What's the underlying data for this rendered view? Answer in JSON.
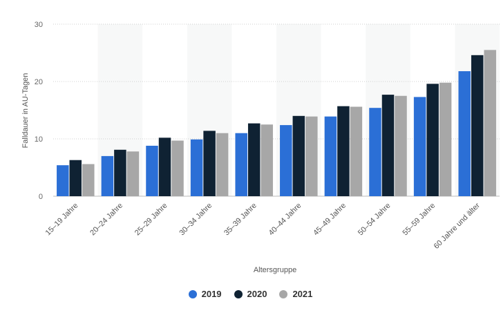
{
  "chart_data": {
    "type": "bar",
    "categories": [
      "15–19 Jahre",
      "20–24 Jahre",
      "25–29 Jahre",
      "30–34 Jahre",
      "35–39 Jahre",
      "40–44 Jahre",
      "45–49 Jahre",
      "50–54 Jahre",
      "55–59 Jahre",
      "60 Jahre und älter"
    ],
    "series": [
      {
        "name": "2019",
        "color": "#2b6fd6",
        "values": [
          5.4,
          7.0,
          8.8,
          9.9,
          11.0,
          12.4,
          13.9,
          15.4,
          17.3,
          21.8
        ]
      },
      {
        "name": "2020",
        "color": "#0f2233",
        "values": [
          6.3,
          8.1,
          10.2,
          11.4,
          12.7,
          14.0,
          15.7,
          17.7,
          19.6,
          24.6
        ]
      },
      {
        "name": "2021",
        "color": "#a7a7a7",
        "values": [
          5.6,
          7.8,
          9.7,
          11.0,
          12.5,
          13.9,
          15.6,
          17.5,
          19.8,
          25.5
        ]
      }
    ],
    "xlabel": "Altersgruppe",
    "ylabel": "Falldauer in AU-Tagen",
    "yticks": [
      "0",
      "10",
      "20",
      "30"
    ],
    "ylim": [
      0,
      30
    ],
    "grid": true,
    "legend_position": "bottom"
  }
}
